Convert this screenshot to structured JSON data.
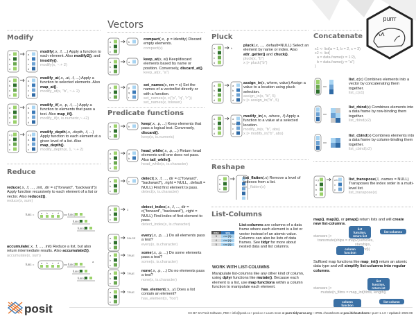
{
  "logo": {
    "hex_label": "purrr",
    "brand": "posit"
  },
  "sections": {
    "modify": "Modify",
    "reduce": "Reduce",
    "vectors": "Vectors",
    "predicate": "Predicate functions",
    "pluck": "Pluck",
    "reshape": "Reshape",
    "list_columns": "List-Columns",
    "concatenate": "Concatenate"
  },
  "modify_items": [
    {
      "text": [
        [
          "modify",
          1
        ],
        [
          "(.x, .f, ...) Apply a function to each element. Also ",
          0
        ],
        [
          "modify2()",
          1
        ],
        [
          ", and ",
          0
        ],
        [
          "imodify()",
          1
        ],
        [
          ".",
          0
        ]
      ],
      "ex": [
        "modify(x, ~.+ 2)"
      ],
      "icon": {
        "in": [
          "a",
          "b",
          "c",
          "d"
        ],
        "out": [
          "a",
          "b",
          "c",
          "d"
        ]
      }
    },
    {
      "text": [
        [
          "modify_at",
          1
        ],
        [
          "(.x, .at, .f, ...) Apply a function to selected elements. Also ",
          0
        ],
        [
          "map_at()",
          1
        ],
        [
          ".",
          0
        ]
      ],
      "ex": [
        "modify_at(x, \"b\", ~.+ 2)"
      ],
      "icon": {
        "in": [
          "a",
          "b",
          "c",
          "d"
        ],
        "out": [
          "a",
          "b",
          "c",
          "d"
        ]
      }
    },
    {
      "text": [
        [
          "modify_if",
          1
        ],
        [
          "(.x, .p, .f, ...) Apply a function to elements that pass a test. Also ",
          0
        ],
        [
          "map_if()",
          1
        ],
        [
          ".",
          0
        ]
      ],
      "ex": [
        "modify_if(x, is.numeric,~.+2)"
      ],
      "icon": {
        "in": [
          "a",
          "b",
          "c",
          "d"
        ],
        "out": [
          "a",
          "b",
          "c",
          "d"
        ]
      }
    },
    {
      "text": [
        [
          "modify_depth",
          1
        ],
        [
          "(.x, .depth, .f, ...) Apply function to each element at a given level of a list. Also ",
          0
        ],
        [
          "map_depth()",
          1
        ],
        [
          ".",
          0
        ]
      ],
      "ex": [
        "modify_depth(x, 1, ~.+ 2)"
      ],
      "icon": {
        "in": [
          "x y",
          "a",
          "b",
          "c"
        ],
        "out": [
          "x y",
          "a",
          "b",
          "c"
        ]
      }
    }
  ],
  "reduce": {
    "text": [
      [
        "reduce",
        1
      ],
      [
        "(.x, .f, ..., .init, .dir = c(\"forward\", \"backward\")) Apply function recursively to each element of a list or vector. Also ",
        0
      ],
      [
        "reduce2()",
        1
      ],
      [
        ".",
        0
      ]
    ],
    "ex": [
      "reduce(x, sum)"
    ],
    "diagram": {
      "func_eq": "func =",
      "letters": [
        "a",
        "b",
        "c",
        "d"
      ],
      "calls": [
        "func(",
        "func(",
        "func("
      ]
    }
  },
  "accumulate": {
    "text": [
      [
        "accumulate",
        1
      ],
      [
        "(.x, .f, ..., .init) Reduce a list, but also return intermediate results. Also ",
        0
      ],
      [
        "accumulate2()",
        1
      ],
      [
        ".",
        0
      ]
    ],
    "ex": [
      "accumulate(x, sum)"
    ],
    "diagram": {
      "func_eq": "func =",
      "letters": [
        "a",
        "b",
        "c",
        "d"
      ],
      "calls": [
        "func(",
        "func(",
        "func("
      ],
      "first": "a"
    }
  },
  "vector_items": [
    {
      "text": [
        [
          "compact",
          1
        ],
        [
          "(.x, .p = identity) Discard empty elements.",
          0
        ]
      ],
      "ex": [
        "compact(x)"
      ],
      "icon": {
        "in": [
          "a",
          "b",
          "c"
        ],
        "out": [
          "b"
        ]
      }
    },
    {
      "text": [
        [
          "keep_at",
          1
        ],
        [
          "(x, at) Keep/discard elements based by name or position. Conversely, ",
          0
        ],
        [
          "discard_at()",
          1
        ],
        [
          ".",
          0
        ]
      ],
      "ex": [
        "keep_at(x, \"a\")"
      ],
      "icon": {
        "in": [
          "a",
          "b",
          "c"
        ],
        "out": [
          "a"
        ]
      }
    },
    {
      "text": [
        [
          "set_names",
          1
        ],
        [
          "(x, nm = x) Set the names of a vector/list directly or with a function.",
          0
        ]
      ],
      "ex": [
        "set_names(x, c(\"p\", \"q\", \"r\"))",
        "set_names(x, tolower)"
      ],
      "icon": {
        "in": [
          "a",
          "b",
          "c"
        ],
        "out": [
          "p",
          "q",
          "r"
        ]
      }
    }
  ],
  "predicate_items": [
    {
      "text": [
        [
          "keep",
          1
        ],
        [
          "(.x, .p, ...) Keep elements that pass a logical test. Conversely, ",
          0
        ],
        [
          "discard()",
          1
        ],
        [
          ".",
          0
        ]
      ],
      "ex": [
        "keep(x, is.numeric)"
      ],
      "icon": {
        "in": [
          "a",
          "b",
          "c"
        ],
        "out": [
          "b"
        ]
      }
    },
    {
      "text": [
        [
          "head_while",
          1
        ],
        [
          "(.x, .p, ...) Return head elements until one does not pass. Also ",
          0
        ],
        [
          "tail_while()",
          1
        ],
        [
          ".",
          0
        ]
      ],
      "ex": [
        "head_while(x, is.character)"
      ],
      "icon": {
        "in": [
          "a",
          "b",
          "c",
          "d"
        ],
        "out": [
          "a",
          "b"
        ]
      }
    },
    {
      "text": [
        [
          "detect",
          1
        ],
        [
          "(.x, .f, ..., dir = c(\"forward\", \"backward\"), .right = NULL, .default = NULL) Find first element to pass.",
          0
        ]
      ],
      "ex": [
        "detect(x, is.character)"
      ],
      "icon": {
        "in": [
          "a",
          "b",
          "c"
        ],
        "out": [
          "c"
        ]
      }
    },
    {
      "text": [
        [
          "detect_index",
          1
        ],
        [
          "(.x, .f, ..., dir = c(\"forward\", \"backward\"), .right = NULL) Find index of first element to pass.",
          0
        ]
      ],
      "ex": [
        "detect_index(x, is.character)"
      ],
      "icon": {
        "in": [
          "a",
          "b",
          "c"
        ],
        "result": "3"
      }
    },
    {
      "text": [
        [
          "every",
          1
        ],
        [
          "(.x, .p, ...) Do all elements pass a test?",
          0
        ]
      ],
      "ex": [
        "every(x, is.character)"
      ],
      "icon": {
        "in": [
          "a",
          "b",
          "c"
        ],
        "result": "FALSE"
      }
    },
    {
      "text": [
        [
          "some",
          1
        ],
        [
          "(.x, .p, ...) Do some elements pass a test?",
          0
        ]
      ],
      "ex": [
        "some(x, is.character)"
      ],
      "icon": {
        "in": [
          "a",
          "b",
          "c"
        ],
        "result": "TRUE"
      }
    },
    {
      "text": [
        [
          "none",
          1
        ],
        [
          "(.x, .p, ...) Do no elements pass a test?",
          0
        ]
      ],
      "ex": [
        "none(x, is.character)"
      ],
      "icon": {
        "in": [
          "a",
          "b",
          "c"
        ],
        "result": "TRUE"
      }
    },
    {
      "text": [
        [
          "has_element",
          1
        ],
        [
          "(.x, .y) Does a list contain an element?",
          0
        ]
      ],
      "ex": [
        "has_element(x, \"foo\")"
      ],
      "icon": {
        "in": [
          "a",
          "b",
          "c"
        ],
        "result": "TRUE"
      }
    }
  ],
  "pluck_items": [
    {
      "text": [
        [
          "pluck",
          1
        ],
        [
          "(.x, ..., .default=NULL) Select an element by name or index. Also ",
          0
        ],
        [
          "attr_getter()",
          1
        ],
        [
          " and ",
          0
        ],
        [
          "chuck()",
          1
        ],
        [
          ".",
          0
        ]
      ],
      "ex": [
        "pluck(x, \"b\")",
        "x |> pluck(\"b\")"
      ],
      "icon": {
        "in": [
          "a",
          "b",
          "c",
          "d"
        ],
        "result": "b"
      }
    },
    {
      "text": [
        [
          "assign_in",
          1
        ],
        [
          "(x, where, value) Assign a value to a location using pluck selection.",
          0
        ]
      ],
      "ex": [
        "assign_in(x, \"b\", 5)",
        "x |> assign_in(\"b\", 5)"
      ],
      "icon": {
        "in": [
          "a",
          "b",
          "c",
          "d"
        ],
        "out": [
          "a",
          "b",
          "c",
          "d"
        ]
      }
    },
    {
      "text": [
        [
          "modify_in",
          1
        ],
        [
          "(.x, .where, .f) Apply a function to a value at a selected location.",
          0
        ]
      ],
      "ex": [
        "modify_in(x, \"b\", abs)",
        "x |> modify_in(\"b\", abs)"
      ],
      "icon": {
        "in": [
          "a",
          "b",
          "c",
          "d"
        ],
        "out": [
          "a",
          "func( b",
          "c",
          "d"
        ]
      }
    }
  ],
  "reshape_items": [
    {
      "text": [
        [
          "list_flatten",
          1
        ],
        [
          "(.x) Remove a level of indexes from a list.",
          0
        ]
      ],
      "ex": [
        "list_flatten(x)"
      ],
      "icon": {
        "in": [
          "a",
          "b",
          "c"
        ],
        "out": [
          "",
          "",
          "",
          "",
          "",
          ""
        ]
      }
    },
    {
      "text": [
        [
          "list_transpose",
          1
        ],
        [
          "(.l, .names = NULL) Transposes the index order in a multi-level list.",
          0
        ]
      ],
      "ex": [
        "list_transpose(x)"
      ],
      "icon": {
        "in": [
          "x y",
          "a",
          "b",
          "c"
        ],
        "out": [
          "a b c",
          "x",
          "y"
        ]
      }
    }
  ],
  "list_columns": {
    "table": {
      "headers": [
        "max",
        "seq"
      ],
      "rows": [
        [
          "3",
          "<int [3]>"
        ],
        [
          "4",
          "<int [4]>"
        ],
        [
          "5",
          "<int [5]>"
        ]
      ]
    },
    "text": [
      [
        "List-columns",
        1
      ],
      [
        " are columns of a data frame where each element is a list or vector instead of an atomic value. Columns can also be lists of data frames. See ",
        0
      ],
      [
        "tidyr",
        1
      ],
      [
        " for more about nested data and list columns.",
        0
      ]
    ],
    "work_heading": "WORK WITH LIST-COLUMNS",
    "work_text": [
      [
        "Manipulate list-columns like any other kind of column, using ",
        0
      ],
      [
        "dplyr",
        1
      ],
      [
        " functions like ",
        0
      ],
      [
        "mutate()",
        1
      ],
      [
        ". Because each element is a list, use ",
        0
      ],
      [
        "map functions",
        1
      ],
      [
        " within a column function to manipulate each element.",
        0
      ]
    ],
    "map_text": [
      [
        "map()",
        1
      ],
      [
        ", ",
        0
      ],
      [
        "map2()",
        1
      ],
      [
        ", or ",
        0
      ],
      [
        "pmap()",
        1
      ],
      [
        " return lists and will ",
        0
      ],
      [
        "create new list-columns",
        1
      ],
      [
        ".",
        0
      ]
    ],
    "map_code": [
      "starwars |>",
      "    transmute(ships = map2(vehicles,",
      "                                        starships,",
      "                                        append))"
    ],
    "map_bubbles": [
      "list function, return list",
      "list-columns",
      "column function"
    ],
    "suffix_text": [
      [
        "Suffixed map functions like ",
        0
      ],
      [
        "map_int()",
        1
      ],
      [
        " return an atomic data type and will ",
        0
      ],
      [
        "simplify list-columns into regular columns",
        1
      ],
      [
        ".",
        0
      ]
    ],
    "suffix_code": [
      "starwars |>",
      "       mutate(n_films = map_int(films, length))"
    ],
    "suffix_bubbles": [
      "list function, return int",
      "column function",
      "list-column"
    ]
  },
  "concatenate": {
    "code": [
      "x1 <- list(a = 1, b = 2, c = 3)",
      "x2 <- list(",
      "  a = data.frame(x = 1:2),",
      "  b = data.frame(y = \"a\")",
      ")"
    ],
    "items": [
      {
        "text": [
          [
            "list_c",
            1
          ],
          [
            "(x) Combines elements into a vector by concatenating them together.",
            0
          ]
        ],
        "ex": [
          "list_c(x1)"
        ]
      },
      {
        "text": [
          [
            "list_rbind",
            1
          ],
          [
            "(x) Combines elements into a data frame by row-binding them together.",
            0
          ]
        ],
        "ex": [
          "list_rbind(x2)"
        ]
      },
      {
        "text": [
          [
            "list_cbind",
            1
          ],
          [
            "(x) Combines elements into a data frame by column-binding them together.",
            0
          ]
        ],
        "ex": [
          "list_cbind(x2)"
        ]
      }
    ]
  },
  "footer": [
    [
      "CC BY SA Posit Software, PBC • info@posit.co • posit.co • Learn more at ",
      0
    ],
    [
      "purrr.tidyverse.org",
      1
    ],
    [
      " • HTML cheatsheets at ",
      0
    ],
    [
      "pos.it/cheatsheets",
      1
    ],
    [
      " • purrr 1.1.0 • Updated: 2025-08",
      0
    ]
  ]
}
